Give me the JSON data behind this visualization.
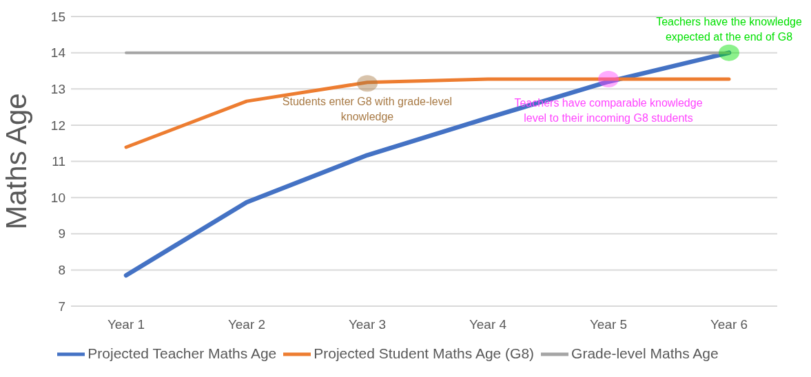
{
  "chart_data": {
    "type": "line",
    "ylabel": "Maths Age",
    "categories": [
      "Year 1",
      "Year 2",
      "Year 3",
      "Year 4",
      "Year 5",
      "Year 6"
    ],
    "series": [
      {
        "name": "Projected Teacher Maths Age",
        "color": "#4472c4",
        "values": [
          7.85,
          9.87,
          11.17,
          12.2,
          13.2,
          14.0
        ]
      },
      {
        "name": "Projected Student Maths Age (G8)",
        "color": "#ed7d31",
        "values": [
          11.39,
          12.66,
          13.18,
          13.27,
          13.27,
          13.27
        ]
      },
      {
        "name": "Grade-level Maths Age",
        "color": "#a5a5a5",
        "values": [
          14,
          14,
          14,
          14,
          14,
          14
        ]
      }
    ],
    "ylim": [
      7,
      15
    ],
    "yticks": [
      7,
      8,
      9,
      10,
      11,
      12,
      13,
      14,
      15
    ],
    "grid": "y",
    "legend": "bottom",
    "marker": "none",
    "line_style": "solid",
    "annotations": [
      {
        "text": "Students enter G8 with grade-level knowledge",
        "x": "Year 3",
        "y": 13.15
      },
      {
        "text": "Teachers have comparable knowledge level to their incoming G8 students",
        "x": "Year 5",
        "y": 13.27
      },
      {
        "text": "Teachers have the knowledge expected at the end of G8",
        "x": "Year 6",
        "y": 14
      }
    ]
  }
}
